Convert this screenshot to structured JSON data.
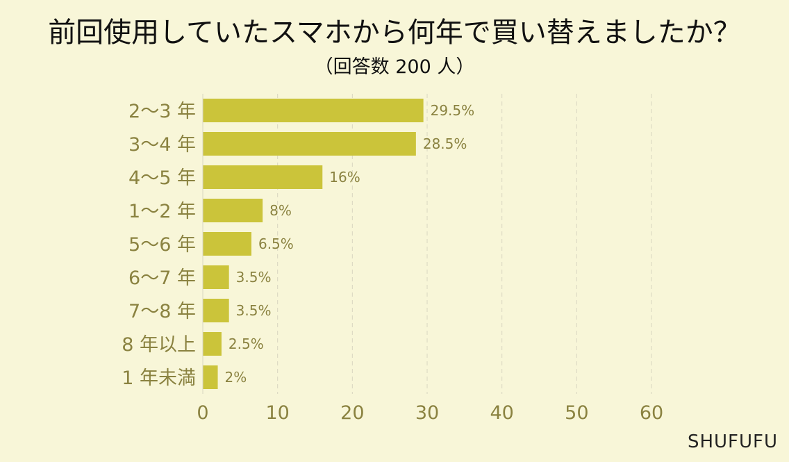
{
  "title": "前回使用していたスマホから何年で買い替えましたか？",
  "subtitle": "（回答数 200 人）",
  "brand": "SHUFUFU",
  "colors": {
    "background": "#f8f6d8",
    "bar": "#cbc43a",
    "axis_text": "#8a8240",
    "value_text": "#8a8240",
    "grid": "#d9d6c0"
  },
  "chart_data": {
    "type": "bar",
    "orientation": "horizontal",
    "categories": [
      "2～3 年",
      "3～4 年",
      "4～5 年",
      "1～2 年",
      "5～6 年",
      "6～7 年",
      "7～8 年",
      "8 年以上",
      "1 年未満"
    ],
    "values": [
      29.5,
      28.5,
      16,
      8,
      6.5,
      3.5,
      3.5,
      2.5,
      2
    ],
    "value_labels": [
      "29.5%",
      "28.5%",
      "16%",
      "8%",
      "6.5%",
      "3.5%",
      "3.5%",
      "2.5%",
      "2%"
    ],
    "x_ticks": [
      0,
      10,
      20,
      30,
      40,
      50,
      60
    ],
    "xlim": [
      0,
      60
    ],
    "grid": true
  }
}
